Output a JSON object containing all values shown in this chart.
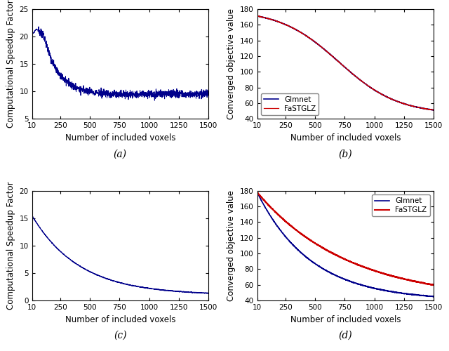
{
  "fig_width": 6.4,
  "fig_height": 5.0,
  "background_color": "#ffffff",
  "subplots": [
    {
      "id": "a",
      "ylabel": "Computational Speedup Factor",
      "xlabel": "Number of included voxels",
      "xlim": [
        10,
        1500
      ],
      "ylim": [
        5,
        25
      ],
      "yticks": [
        5,
        10,
        15,
        20,
        25
      ],
      "xticks": [
        10,
        250,
        500,
        750,
        1000,
        1250,
        1500
      ],
      "label": "(a)",
      "curve_color": "#00008B",
      "curve_type": "speedup_a"
    },
    {
      "id": "b",
      "ylabel": "Converged objective value",
      "xlabel": "Number of included voxels",
      "xlim": [
        10,
        1500
      ],
      "ylim": [
        40,
        180
      ],
      "yticks": [
        40,
        60,
        80,
        100,
        120,
        140,
        160,
        180
      ],
      "xticks": [
        10,
        250,
        500,
        750,
        1000,
        1250,
        1500
      ],
      "label": "(b)",
      "fastglz_color": "#CC0000",
      "glmnet_color": "#00008B",
      "legend_labels": [
        "FaSTGLZ",
        "Glmnet"
      ],
      "legend_loc": "lower left",
      "curve_type": "objective_b"
    },
    {
      "id": "c",
      "ylabel": "Computational Speedup Factor",
      "xlabel": "Number of included voxels",
      "xlim": [
        10,
        1500
      ],
      "ylim": [
        0,
        20
      ],
      "yticks": [
        0,
        5,
        10,
        15,
        20
      ],
      "xticks": [
        10,
        250,
        500,
        750,
        1000,
        1250,
        1500
      ],
      "label": "(c)",
      "curve_color": "#00008B",
      "curve_type": "speedup_c"
    },
    {
      "id": "d",
      "ylabel": "Converged objective value",
      "xlabel": "Number of included voxels",
      "xlim": [
        10,
        1500
      ],
      "ylim": [
        40,
        180
      ],
      "yticks": [
        40,
        60,
        80,
        100,
        120,
        140,
        160,
        180
      ],
      "xticks": [
        10,
        250,
        500,
        750,
        1000,
        1250,
        1500
      ],
      "label": "(d)",
      "fastglz_color": "#CC0000",
      "glmnet_color": "#00008B",
      "legend_labels": [
        "FaSTGLZ",
        "Glmnet"
      ],
      "legend_loc": "upper right",
      "curve_type": "objective_d"
    }
  ],
  "tick_fontsize": 7.5,
  "label_fontsize": 8.5,
  "sublabel_fontsize": 10,
  "legend_fontsize": 7.5
}
